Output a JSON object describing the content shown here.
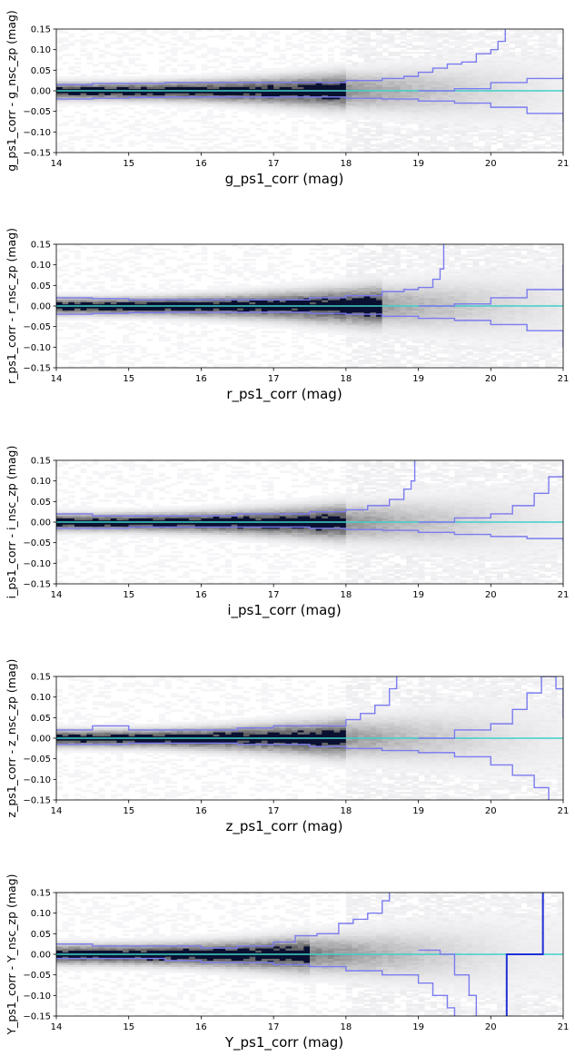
{
  "colors": {
    "zero_line": "#40d0c8",
    "envelope": "#7b7bf0",
    "envelope_strong": "#1f2fd6",
    "density_dark": "#0a1030",
    "axes": "#000000"
  },
  "chart_data": [
    {
      "type": "heatmap",
      "title": "",
      "xlabel": "g_ps1_corr (mag)",
      "ylabel": "g_ps1_corr - g_nsc_zp (mag)",
      "xlim": [
        14,
        21
      ],
      "ylim": [
        -0.15,
        0.15
      ],
      "x_ticks": [
        "14",
        "15",
        "16",
        "17",
        "18",
        "19",
        "20",
        "21"
      ],
      "y_ticks": [
        "−0.15",
        "−0.10",
        "−0.05",
        "0.00",
        "0.05",
        "0.10",
        "0.15"
      ],
      "reference_line": 0.0,
      "density": {
        "center": 0.0,
        "sigma_bright": 0.012,
        "sigma_faint": 0.06,
        "dense_until": 18.0
      },
      "upper_envelope": {
        "x": [
          14.0,
          14.5,
          15,
          15.5,
          16,
          16.5,
          17,
          17.5,
          18,
          18.5,
          18.8,
          19.0,
          19.2,
          19.4,
          19.6,
          19.8,
          20.0,
          20.1,
          20.2
        ],
        "y": [
          0.015,
          0.018,
          0.018,
          0.02,
          0.02,
          0.02,
          0.02,
          0.02,
          0.025,
          0.03,
          0.035,
          0.045,
          0.055,
          0.065,
          0.07,
          0.09,
          0.1,
          0.12,
          0.16
        ]
      },
      "lower_envelope": {
        "x": [
          14.0,
          14.5,
          15,
          15.5,
          16,
          16.5,
          17,
          17.5,
          18,
          18.5,
          19,
          19.5,
          20,
          20.5,
          21
        ],
        "y": [
          -0.02,
          -0.018,
          -0.016,
          -0.015,
          -0.015,
          -0.015,
          -0.015,
          -0.015,
          -0.018,
          -0.02,
          -0.025,
          -0.03,
          -0.04,
          -0.055,
          -0.075
        ]
      },
      "upper_envelope_2": {
        "x": [
          19.0,
          19.5,
          20,
          20.5,
          21
        ],
        "y": [
          0.0,
          0.005,
          0.02,
          0.03,
          0.04
        ]
      }
    },
    {
      "type": "heatmap",
      "title": "",
      "xlabel": "r_ps1_corr (mag)",
      "ylabel": "r_ps1_corr - r_nsc_zp (mag)",
      "xlim": [
        14,
        21
      ],
      "ylim": [
        -0.15,
        0.15
      ],
      "x_ticks": [
        "14",
        "15",
        "16",
        "17",
        "18",
        "19",
        "20",
        "21"
      ],
      "y_ticks": [
        "−0.15",
        "−0.10",
        "−0.05",
        "0.00",
        "0.05",
        "0.10",
        "0.15"
      ],
      "reference_line": 0.0,
      "density": {
        "center": 0.0,
        "sigma_bright": 0.012,
        "sigma_faint": 0.06,
        "dense_until": 18.5
      },
      "upper_envelope": {
        "x": [
          14.0,
          14.5,
          15,
          15.5,
          16,
          16.5,
          17,
          17.5,
          18,
          18.5,
          18.8,
          19.0,
          19.2,
          19.3,
          19.35
        ],
        "y": [
          0.02,
          0.018,
          0.015,
          0.015,
          0.015,
          0.015,
          0.015,
          0.02,
          0.025,
          0.035,
          0.04,
          0.045,
          0.065,
          0.09,
          0.16
        ]
      },
      "lower_envelope": {
        "x": [
          14.0,
          14.5,
          15,
          15.5,
          16,
          16.5,
          17,
          17.5,
          18,
          18.5,
          19,
          19.5,
          20,
          20.5,
          21
        ],
        "y": [
          -0.02,
          -0.018,
          -0.016,
          -0.015,
          -0.015,
          -0.015,
          -0.015,
          -0.018,
          -0.02,
          -0.025,
          -0.03,
          -0.035,
          -0.045,
          -0.06,
          -0.1
        ]
      },
      "upper_envelope_2": {
        "x": [
          19.0,
          19.5,
          20,
          20.5,
          21
        ],
        "y": [
          0.0,
          0.005,
          0.02,
          0.04,
          0.1
        ]
      }
    },
    {
      "type": "heatmap",
      "title": "",
      "xlabel": "i_ps1_corr (mag)",
      "ylabel": "i_ps1_corr - i_nsc_zp (mag)",
      "xlim": [
        14,
        21
      ],
      "ylim": [
        -0.15,
        0.15
      ],
      "x_ticks": [
        "14",
        "15",
        "16",
        "17",
        "18",
        "19",
        "20",
        "21"
      ],
      "y_ticks": [
        "−0.15",
        "−0.10",
        "−0.05",
        "0.00",
        "0.05",
        "0.10",
        "0.15"
      ],
      "reference_line": 0.0,
      "density": {
        "center": 0.0,
        "sigma_bright": 0.012,
        "sigma_faint": 0.06,
        "dense_until": 18.0
      },
      "upper_envelope": {
        "x": [
          14.0,
          14.5,
          15,
          15.5,
          16,
          16.5,
          17,
          17.5,
          18,
          18.3,
          18.6,
          18.8,
          18.9,
          18.95
        ],
        "y": [
          0.02,
          0.015,
          0.015,
          0.015,
          0.015,
          0.02,
          0.02,
          0.025,
          0.03,
          0.04,
          0.055,
          0.08,
          0.1,
          0.16
        ]
      },
      "lower_envelope": {
        "x": [
          14.0,
          14.5,
          15,
          15.5,
          16,
          16.5,
          17,
          17.5,
          18,
          18.5,
          19,
          19.5,
          20,
          20.5,
          21
        ],
        "y": [
          -0.015,
          -0.015,
          -0.012,
          -0.012,
          -0.012,
          -0.012,
          -0.012,
          -0.015,
          -0.018,
          -0.02,
          -0.025,
          -0.03,
          -0.035,
          -0.04,
          -0.045
        ]
      },
      "upper_envelope_2": {
        "x": [
          19.0,
          19.5,
          20,
          20.3,
          20.6,
          20.8,
          21
        ],
        "y": [
          0.0,
          0.01,
          0.02,
          0.04,
          0.07,
          0.11,
          0.15
        ]
      }
    },
    {
      "type": "heatmap",
      "title": "",
      "xlabel": "z_ps1_corr (mag)",
      "ylabel": "z_ps1_corr - z_nsc_zp (mag)",
      "xlim": [
        14,
        21
      ],
      "ylim": [
        -0.15,
        0.15
      ],
      "x_ticks": [
        "14",
        "15",
        "16",
        "17",
        "18",
        "19",
        "20",
        "21"
      ],
      "y_ticks": [
        "−0.15",
        "−0.10",
        "−0.05",
        "0.00",
        "0.05",
        "0.10",
        "0.15"
      ],
      "reference_line": 0.0,
      "density": {
        "center": 0.0,
        "sigma_bright": 0.012,
        "sigma_faint": 0.065,
        "dense_until": 18.0
      },
      "upper_envelope": {
        "x": [
          14.0,
          14.5,
          15,
          15.5,
          16,
          16.5,
          17,
          17.5,
          18,
          18.2,
          18.4,
          18.6,
          18.7
        ],
        "y": [
          0.02,
          0.03,
          0.02,
          0.02,
          0.02,
          0.025,
          0.03,
          0.03,
          0.045,
          0.06,
          0.08,
          0.12,
          0.16
        ]
      },
      "lower_envelope": {
        "x": [
          14.0,
          14.5,
          15,
          15.5,
          16,
          16.5,
          17,
          17.5,
          18,
          18.5,
          19,
          19.5,
          20,
          20.3,
          20.6,
          20.8
        ],
        "y": [
          -0.015,
          -0.015,
          -0.012,
          -0.012,
          -0.012,
          -0.015,
          -0.015,
          -0.02,
          -0.025,
          -0.03,
          -0.035,
          -0.045,
          -0.065,
          -0.09,
          -0.12,
          -0.16
        ]
      },
      "upper_envelope_2": {
        "x": [
          19.0,
          19.5,
          20,
          20.3,
          20.5,
          20.7,
          20.9,
          21
        ],
        "y": [
          0.0,
          0.02,
          0.035,
          0.07,
          0.11,
          0.15,
          0.12,
          0.05
        ]
      }
    },
    {
      "type": "heatmap",
      "title": "",
      "xlabel": "Y_ps1_corr (mag)",
      "ylabel": "Y_ps1_corr - Y_nsc_zp (mag)",
      "xlim": [
        14,
        21
      ],
      "ylim": [
        -0.15,
        0.15
      ],
      "x_ticks": [
        "14",
        "15",
        "16",
        "17",
        "18",
        "19",
        "20",
        "21"
      ],
      "y_ticks": [
        "−0.15",
        "−0.10",
        "−0.05",
        "0.00",
        "0.05",
        "0.10",
        "0.15"
      ],
      "reference_line": 0.0,
      "density": {
        "center": 0.0,
        "sigma_bright": 0.014,
        "sigma_faint": 0.07,
        "dense_until": 17.5
      },
      "upper_envelope": {
        "x": [
          14.0,
          14.5,
          15,
          15.5,
          16,
          16.5,
          17,
          17.3,
          17.6,
          17.9,
          18.1,
          18.3,
          18.5,
          18.6
        ],
        "y": [
          0.025,
          0.02,
          0.02,
          0.02,
          0.015,
          0.02,
          0.03,
          0.045,
          0.05,
          0.075,
          0.085,
          0.1,
          0.13,
          0.16
        ]
      },
      "lower_envelope": {
        "x": [
          14.0,
          14.5,
          15,
          15.5,
          16,
          16.5,
          17,
          17.5,
          18,
          18.5,
          19,
          19.2,
          19.4,
          19.5
        ],
        "y": [
          -0.01,
          -0.01,
          -0.01,
          -0.015,
          -0.02,
          -0.02,
          -0.025,
          -0.03,
          -0.04,
          -0.05,
          -0.07,
          -0.1,
          -0.13,
          -0.16
        ]
      },
      "upper_envelope_2": {
        "x": [
          19.0,
          19.3,
          19.5,
          19.7,
          19.8
        ],
        "y": [
          0.01,
          0.0,
          -0.05,
          -0.1,
          -0.16
        ]
      },
      "strong_step": {
        "x": [
          20.2,
          20.22,
          20.5,
          20.7,
          20.72
        ],
        "y": [
          -0.16,
          0.0,
          0.0,
          0.0,
          0.16
        ]
      }
    }
  ]
}
